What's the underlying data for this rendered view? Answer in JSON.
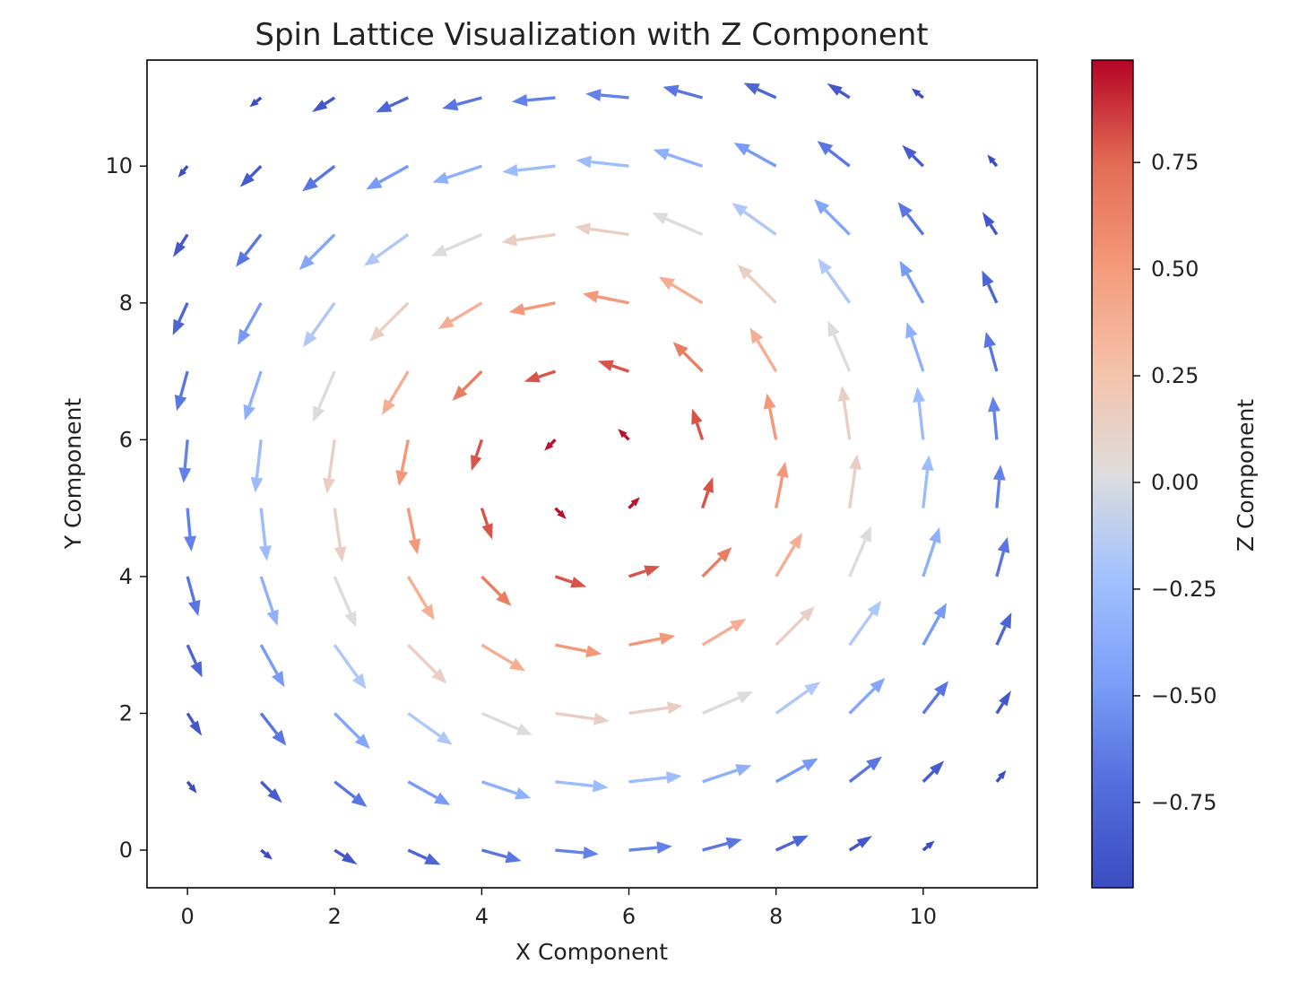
{
  "chart_data": {
    "type": "quiver",
    "title": "Spin Lattice Visualization with Z Component",
    "xlabel": "X Component",
    "ylabel": "Y Component",
    "xlim": [
      -0.55,
      11.55
    ],
    "ylim": [
      -0.55,
      11.55
    ],
    "xticks": [
      0,
      2,
      4,
      6,
      8,
      10
    ],
    "yticks": [
      0,
      2,
      4,
      6,
      8,
      10
    ],
    "grid": false,
    "lattice": {
      "x": [
        0,
        1,
        2,
        3,
        4,
        5,
        6,
        7,
        8,
        9,
        10,
        11
      ],
      "y": [
        0,
        1,
        2,
        3,
        4,
        5,
        6,
        7,
        8,
        9,
        10,
        11
      ],
      "field": "counter-clockwise vortex centered at (5.5, 5.5)"
    },
    "colorbar": {
      "label": "Z Component",
      "colormap": "coolwarm",
      "range": [
        -0.95,
        0.99
      ],
      "ticks": [
        0.75,
        0.5,
        0.25,
        0.0,
        -0.25,
        -0.5,
        -0.75
      ],
      "tick_labels": [
        "0.75",
        "0.50",
        "0.25",
        "0.00",
        "−0.25",
        "−0.50",
        "−0.75"
      ],
      "low_color": "#3b4cc0",
      "mid_color": "#dddddd",
      "high_color": "#b40426"
    }
  }
}
